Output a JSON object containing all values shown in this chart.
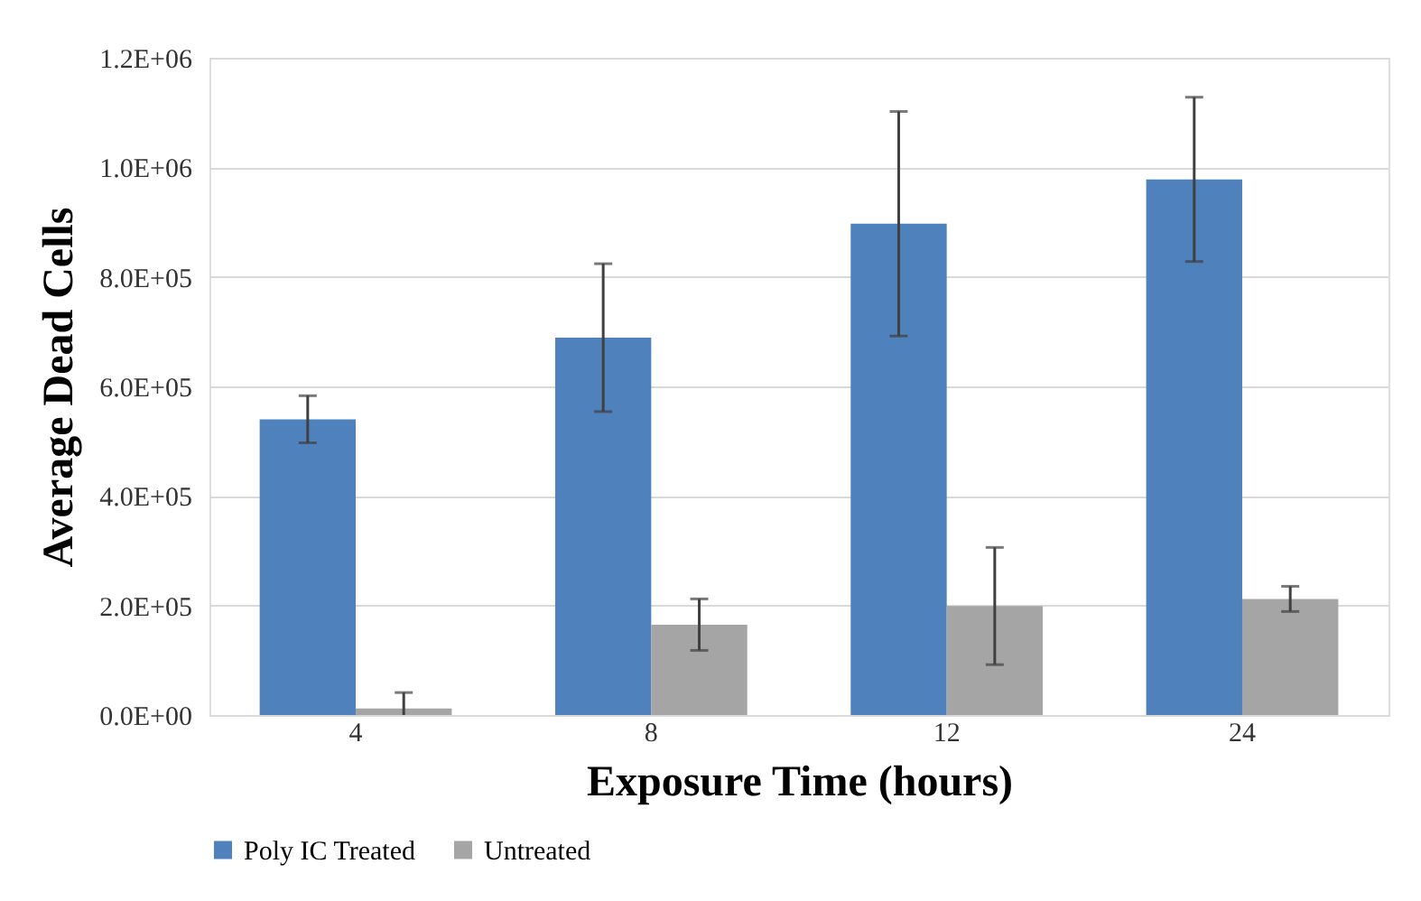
{
  "chart_data": {
    "type": "bar",
    "xlabel": "Exposure Time (hours)",
    "ylabel": "Average Dead Cells",
    "categories": [
      "4",
      "8",
      "12",
      "24"
    ],
    "series": [
      {
        "name": "Poly IC Treated",
        "color": "#4f81bd",
        "values": [
          540000,
          689000,
          897000,
          978000
        ],
        "errors": [
          43000,
          135000,
          205000,
          150000
        ]
      },
      {
        "name": "Untreated",
        "color": "#a5a5a5",
        "values": [
          12000,
          165000,
          199000,
          212000
        ],
        "errors": [
          29000,
          47000,
          107000,
          23000
        ]
      }
    ],
    "ylim": [
      0,
      1200000
    ],
    "yticks": [
      {
        "value": 0,
        "label": "0.0E+00"
      },
      {
        "value": 200000,
        "label": "2.0E+05"
      },
      {
        "value": 400000,
        "label": "4.0E+05"
      },
      {
        "value": 600000,
        "label": "6.0E+05"
      },
      {
        "value": 800000,
        "label": "8.0E+05"
      },
      {
        "value": 1000000,
        "label": "1.0E+06"
      },
      {
        "value": 1200000,
        "label": "1.2E+06"
      }
    ],
    "grid": "y",
    "legend": "bottom"
  }
}
